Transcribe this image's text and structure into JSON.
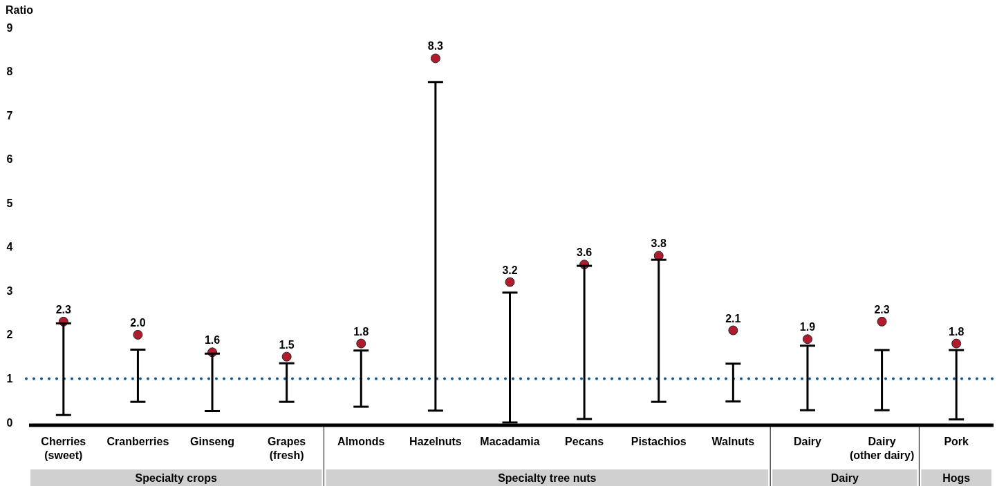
{
  "chart_data": {
    "type": "scatter",
    "ylabel": "Ratio",
    "categories": [
      "Cherries\n(sweet)",
      "Cranberries",
      "Ginseng",
      "Grapes\n(fresh)",
      "Almonds",
      "Hazelnuts",
      "Macadamia",
      "Pecans",
      "Pistachios",
      "Walnuts",
      "Dairy",
      "Dairy\n(other dairy)",
      "Pork"
    ],
    "series": [
      {
        "type": "bar",
        "color": "#000000",
        "base": [
          0.17,
          0.47,
          0.26,
          0.47,
          0.36,
          0.27,
          0.0,
          0.08,
          0.47,
          0.48,
          0.28,
          0.28,
          0.07
        ],
        "values": [
          2.09,
          1.19,
          1.31,
          0.88,
          1.28,
          7.49,
          2.96,
          3.49,
          3.24,
          0.86,
          1.47,
          1.37,
          1.58
        ]
      },
      {
        "color": "#b01c2e",
        "values": [
          2.3,
          2.0,
          1.6,
          1.5,
          1.8,
          8.3,
          3.2,
          3.6,
          3.8,
          2.1,
          1.9,
          2.3,
          1.8
        ],
        "value_labels": [
          "2.3",
          "2.0",
          "1.6",
          "1.5",
          "1.8",
          "8.3",
          "3.2",
          "3.6",
          "3.8",
          "2.1",
          "1.9",
          "2.3",
          "1.8"
        ]
      }
    ],
    "ylim": [
      0,
      9
    ],
    "yticks": [
      0,
      1,
      2,
      3,
      4,
      5,
      6,
      7,
      8,
      9
    ],
    "ref_lines": [
      {
        "axis": "y",
        "value": 1,
        "color": "#0b5394",
        "line_style": "dotted"
      }
    ],
    "annotations": [
      "Specialty crops",
      "Specialty tree nuts",
      "Dairy",
      "Hogs"
    ],
    "marker": "circle"
  }
}
